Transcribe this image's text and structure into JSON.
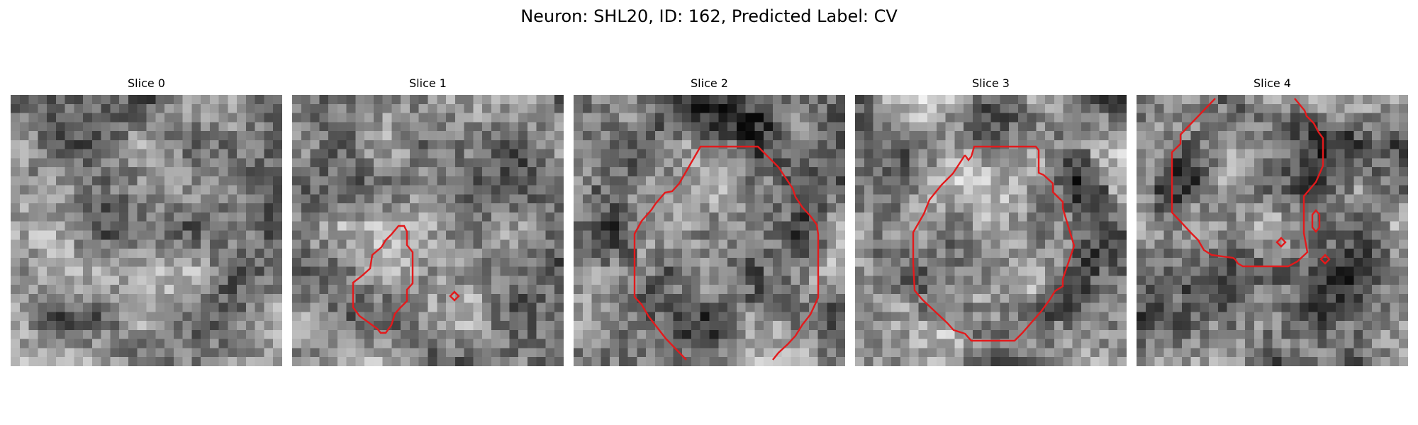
{
  "figure": {
    "title": "Neuron: SHL20, ID: 162, Predicted Label: CV"
  },
  "colors": {
    "background": "#ffffff",
    "contour": "#e31a1c",
    "colormap": "gray"
  },
  "panels": [
    {
      "title": "Slice 0",
      "seed": 11,
      "contours": []
    },
    {
      "title": "Slice 1",
      "seed": 23,
      "contours": [
        "blob",
        "diamond"
      ]
    },
    {
      "title": "Slice 2",
      "seed": 37,
      "contours": [
        "large-octagon"
      ]
    },
    {
      "title": "Slice 3",
      "seed": 41,
      "contours": [
        "octagon"
      ]
    },
    {
      "title": "Slice 4",
      "seed": 59,
      "contours": [
        "region",
        "small-loop",
        "diamond",
        "diamond"
      ]
    }
  ]
}
